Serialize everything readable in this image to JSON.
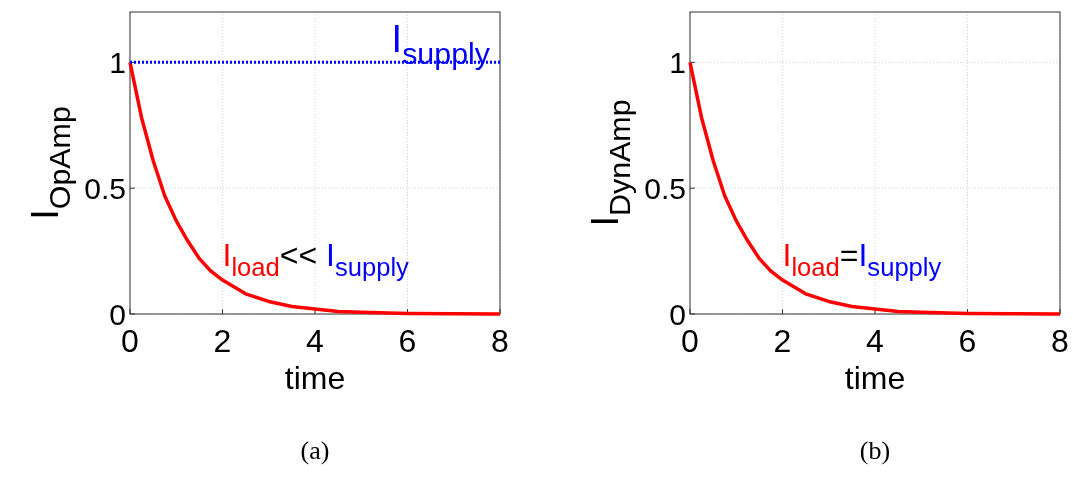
{
  "chart_data": [
    {
      "type": "line",
      "title": "(a)",
      "xlabel": "time",
      "ylabel": "I$_{OpAmp}$",
      "xlim": [
        0,
        8
      ],
      "ylim": [
        0,
        1.2
      ],
      "xticks": [
        0,
        2,
        4,
        6,
        8
      ],
      "yticks": [
        0,
        0.5,
        1
      ],
      "grid": true,
      "line_style": "solid",
      "series": [
        {
          "color": "#ff0000",
          "x": [
            0,
            0.25,
            0.5,
            0.75,
            1,
            1.25,
            1.5,
            1.75,
            2,
            2.5,
            3,
            3.5,
            4,
            4.5,
            5,
            6,
            7,
            8
          ],
          "values": [
            1,
            0.78,
            0.61,
            0.47,
            0.37,
            0.29,
            0.22,
            0.17,
            0.135,
            0.08,
            0.05,
            0.03,
            0.02,
            0.01,
            0.007,
            0.002,
            0.001,
            0
          ]
        },
        {
          "name": "I$_{supply}$",
          "color": "#0000ff",
          "line_style": "dotted",
          "x": [
            0,
            8
          ],
          "values": [
            1,
            1
          ]
        }
      ],
      "annotations": [
        "I$_{load}$<< I$_{supply}$"
      ]
    },
    {
      "type": "line",
      "title": "(b)",
      "xlabel": "time",
      "ylabel": "I$_{DynAmp}$",
      "xlim": [
        0,
        8
      ],
      "ylim": [
        0,
        1.2
      ],
      "xticks": [
        0,
        2,
        4,
        6,
        8
      ],
      "yticks": [
        0,
        0.5,
        1
      ],
      "grid": true,
      "line_style": "solid",
      "series": [
        {
          "color": "#ff0000",
          "x": [
            0,
            0.25,
            0.5,
            0.75,
            1,
            1.25,
            1.5,
            1.75,
            2,
            2.5,
            3,
            3.5,
            4,
            4.5,
            5,
            6,
            7,
            8
          ],
          "values": [
            1,
            0.78,
            0.61,
            0.47,
            0.37,
            0.29,
            0.22,
            0.17,
            0.135,
            0.08,
            0.05,
            0.03,
            0.02,
            0.01,
            0.007,
            0.002,
            0.001,
            0
          ]
        }
      ],
      "annotations": [
        "I$_{load}$=I$_{supply}$"
      ]
    }
  ]
}
